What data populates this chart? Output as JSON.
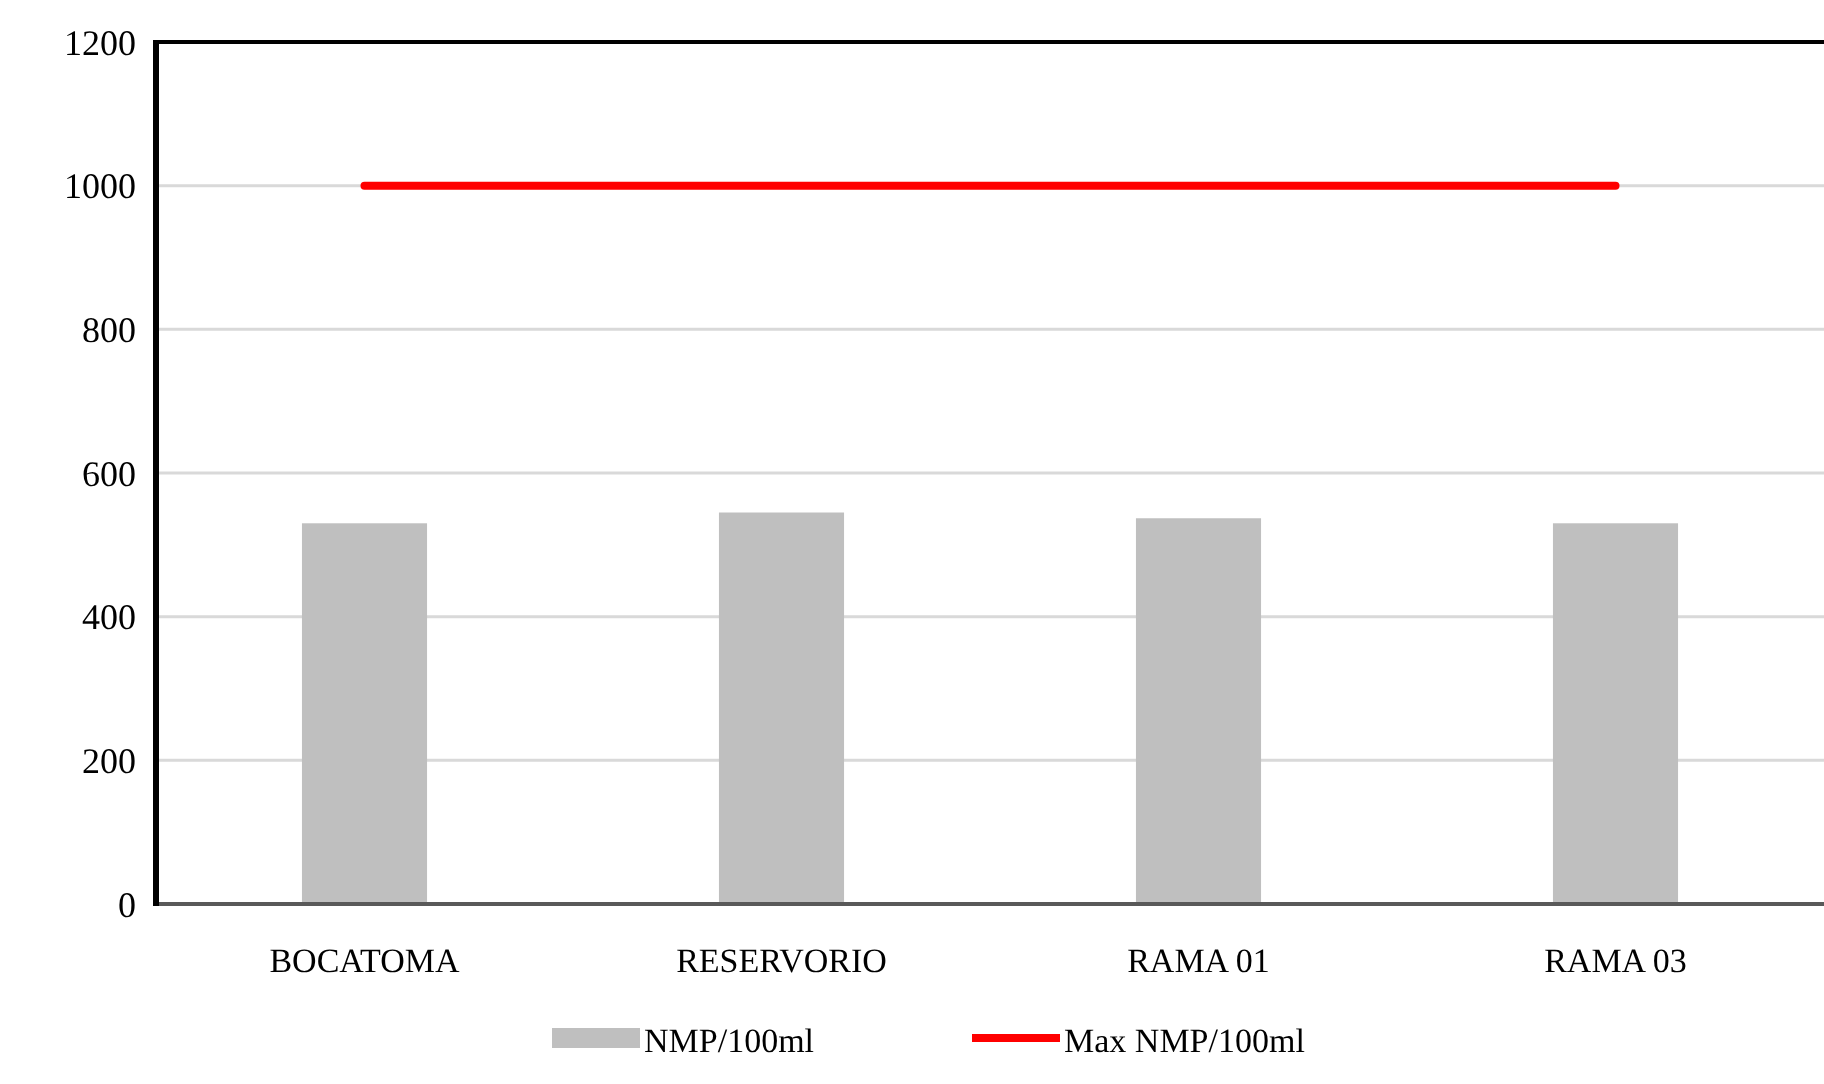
{
  "chart_data": {
    "type": "bar",
    "categories": [
      "BOCATOMA",
      "RESERVORIO",
      "RAMA 01",
      "RAMA 03"
    ],
    "series": [
      {
        "name": "NMP/100ml",
        "color": "#bfbfbf",
        "values": [
          530,
          545,
          537,
          530
        ]
      },
      {
        "name": "Max NMP/100ml",
        "type": "line",
        "color": "#ff0000",
        "values": [
          1000,
          1000,
          1000,
          1000
        ]
      }
    ],
    "ylim": [
      0,
      1200
    ],
    "yticks": [
      0,
      200,
      400,
      600,
      800,
      1000,
      1200
    ],
    "grid": "y",
    "legend": "bottom",
    "marker": "none"
  }
}
